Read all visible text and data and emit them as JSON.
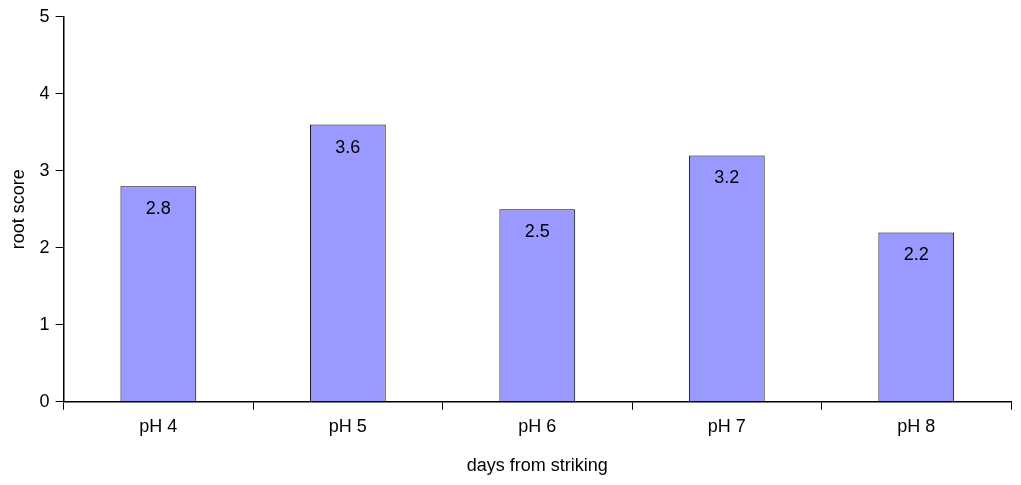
{
  "chart_data": {
    "type": "bar",
    "xlabel": "days from striking",
    "ylabel": "root score",
    "categories": [
      "pH 4",
      "pH 5",
      "pH 6",
      "pH 7",
      "pH 8"
    ],
    "values": [
      2.8,
      3.6,
      2.5,
      3.2,
      2.2
    ],
    "color": "#9999ff",
    "ylim": [
      0,
      5
    ],
    "yticks": [
      0,
      1,
      2,
      3,
      4,
      5
    ],
    "grid": false,
    "legend": false,
    "data_labels": true
  }
}
